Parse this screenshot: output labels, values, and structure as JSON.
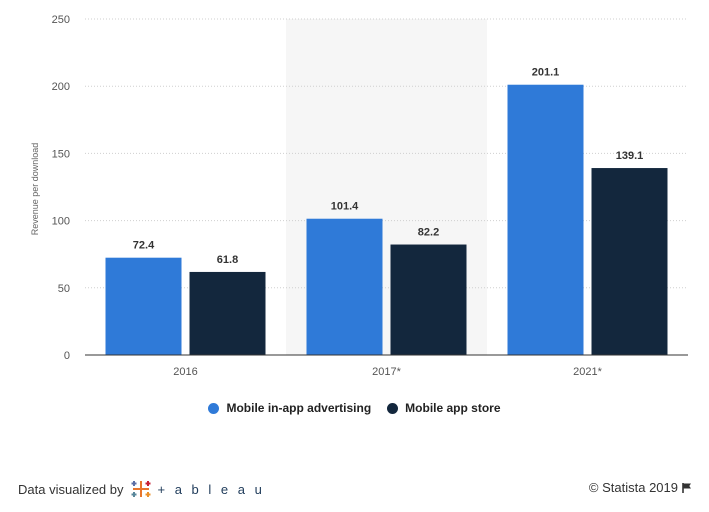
{
  "chart_data": {
    "type": "bar",
    "categories": [
      "2016",
      "2017*",
      "2021*"
    ],
    "series": [
      {
        "name": "Mobile in-app advertising",
        "color": "#2f7ad8",
        "values": [
          72.4,
          101.4,
          201.1
        ]
      },
      {
        "name": "Mobile app store",
        "color": "#13273d",
        "values": [
          61.8,
          82.2,
          139.1
        ]
      }
    ],
    "title": "",
    "xlabel": "",
    "ylabel": "Revenue per download",
    "ylim": [
      0,
      250
    ],
    "yticks": [
      0,
      50,
      100,
      150,
      200,
      250
    ],
    "grid": "horizontal dotted",
    "highlighted_category": "2017*",
    "highlight_color": "#f6f6f6",
    "legend_position": "bottom-center"
  },
  "footer": {
    "credit_label": "Data visualized by",
    "tableau_logo_text": "+ a b l e a u",
    "copyright": "© Statista 2019",
    "flag_icon": "flag-icon"
  }
}
